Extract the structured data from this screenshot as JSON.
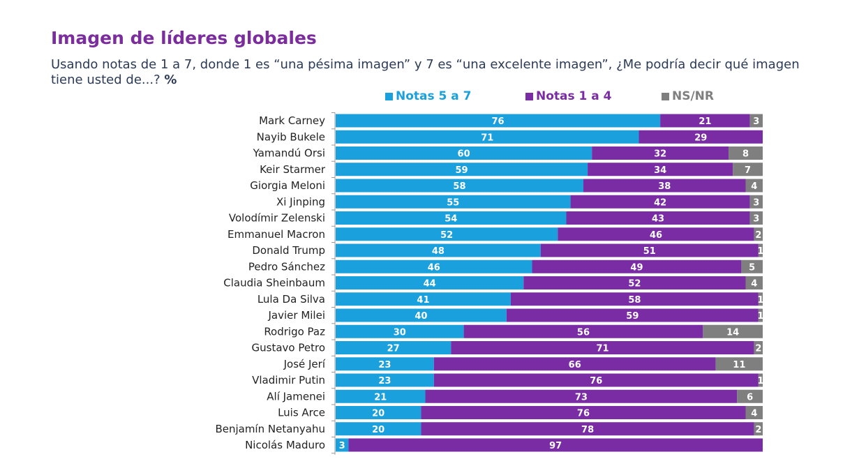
{
  "title": "Imagen de líderes globales",
  "subtitle": {
    "text": "Usando notas de 1 a 7, donde 1 es “una pésima imagen” y 7 es “una excelente imagen”, ¿Me podría decir qué imagen tiene usted de...?",
    "unit": "%"
  },
  "colors": {
    "positive": "#1aa0dc",
    "negative": "#7a2ca4",
    "nsnr": "#7f7f7f",
    "title": "#7b2d9e",
    "subtitle": "#2b3a55"
  },
  "legend": [
    {
      "label": "Notas 5 a 7",
      "color": "#1aa0dc"
    },
    {
      "label": "Notas 1 a 4",
      "color": "#7a2ca4"
    },
    {
      "label": "NS/NR",
      "color": "#7f7f7f"
    }
  ],
  "chart_data": {
    "type": "bar",
    "orientation": "horizontal",
    "stacked": true,
    "title": "Imagen de líderes globales",
    "xlabel": "",
    "ylabel": "",
    "xlim": [
      0,
      100
    ],
    "grid": false,
    "legend_position": "top",
    "categories": [
      "Mark Carney",
      "Nayib Bukele",
      "Yamandú Orsi",
      "Keir Starmer",
      "Giorgia Meloni",
      "Xi Jinping",
      "Volodímir Zelenski",
      "Emmanuel Macron",
      "Donald Trump",
      "Pedro Sánchez",
      "Claudia Sheinbaum",
      "Lula Da Silva",
      "Javier Milei",
      "Rodrigo Paz",
      "Gustavo Petro",
      "José Jerí",
      "Vladimir Putin",
      "Alí Jamenei",
      "Luis Arce",
      "Benjamín Netanyahu",
      "Nicolás Maduro"
    ],
    "series": [
      {
        "name": "Notas 5 a 7",
        "color": "#1aa0dc",
        "values": [
          76,
          71,
          60,
          59,
          58,
          55,
          54,
          52,
          48,
          46,
          44,
          41,
          40,
          30,
          27,
          23,
          23,
          21,
          20,
          20,
          3
        ]
      },
      {
        "name": "Notas 1 a 4",
        "color": "#7a2ca4",
        "values": [
          21,
          29,
          32,
          34,
          38,
          42,
          43,
          46,
          51,
          49,
          52,
          58,
          59,
          56,
          71,
          66,
          76,
          73,
          76,
          78,
          97
        ]
      },
      {
        "name": "NS/NR",
        "color": "#7f7f7f",
        "values": [
          3,
          0,
          8,
          7,
          4,
          3,
          3,
          2,
          1,
          5,
          4,
          1,
          1,
          14,
          2,
          11,
          1,
          6,
          4,
          2,
          0
        ]
      }
    ]
  }
}
